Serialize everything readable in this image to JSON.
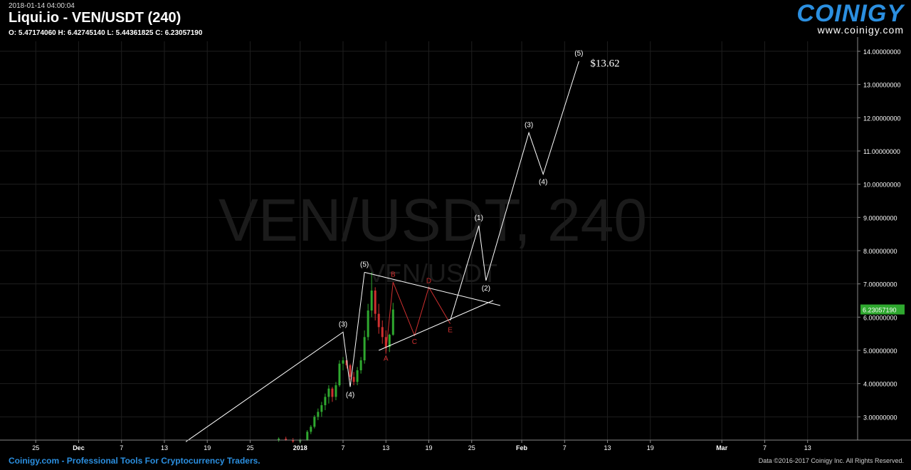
{
  "header": {
    "timestamp": "2018-01-14 04:00:04",
    "title": "Liqui.io - VEN/USDT (240)",
    "ohlc": "O: 5.47174060 H: 6.42745140 L: 5.44361825 C: 6.23057190"
  },
  "logo": {
    "word": "COINIGY",
    "url": "www.coinigy.com"
  },
  "watermark": {
    "large": "VEN/USDT, 240",
    "small": "VEN/USDT"
  },
  "footer": {
    "left": "Coinigy.com - Professional Tools For Cryptocurrency Traders.",
    "right": "Data ©2016-2017 Coinigy Inc. All Rights Reserved."
  },
  "colors": {
    "up": "#2fa82f",
    "down": "#d03030",
    "background": "#000000",
    "accent": "#2b8fe0",
    "price_tag": "#2fa82f",
    "wave_corrective": "#d03030",
    "wave_impulse": "#ffffff"
  },
  "chart_data": {
    "type": "candlestick",
    "x_axis": {
      "domain": [
        "2017-11-20",
        "2018-03-20"
      ],
      "ticks": [
        {
          "date": "2017-11-25",
          "label": "25"
        },
        {
          "date": "2017-12-01",
          "label": "Dec"
        },
        {
          "date": "2017-12-07",
          "label": "7"
        },
        {
          "date": "2017-12-13",
          "label": "13"
        },
        {
          "date": "2017-12-19",
          "label": "19"
        },
        {
          "date": "2017-12-25",
          "label": "25"
        },
        {
          "date": "2018-01-01",
          "label": "2018"
        },
        {
          "date": "2018-01-07",
          "label": "7"
        },
        {
          "date": "2018-01-13",
          "label": "13"
        },
        {
          "date": "2018-01-19",
          "label": "19"
        },
        {
          "date": "2018-01-25",
          "label": "25"
        },
        {
          "date": "2018-02-01",
          "label": "Feb"
        },
        {
          "date": "2018-02-07",
          "label": "7"
        },
        {
          "date": "2018-02-13",
          "label": "13"
        },
        {
          "date": "2018-02-19",
          "label": "19"
        },
        {
          "date": "2018-03-01",
          "label": "Mar"
        },
        {
          "date": "2018-03-07",
          "label": "7"
        },
        {
          "date": "2018-03-13",
          "label": "13"
        }
      ]
    },
    "y_axis": {
      "range": [
        2.3,
        14.3
      ],
      "ticks": [
        3,
        4,
        5,
        6,
        7,
        8,
        9,
        10,
        11,
        12,
        13,
        14
      ],
      "tick_labels": [
        "3.00000000",
        "4.00000000",
        "5.00000000",
        "6.00000000",
        "7.00000000",
        "8.00000000",
        "9.00000000",
        "10.00000000",
        "11.00000000",
        "12.00000000",
        "13.00000000",
        "14.00000000"
      ],
      "side": "right"
    },
    "grid": true,
    "last_price": {
      "value": 6.2305719,
      "label": "6.23057190"
    },
    "candles": [
      {
        "t": "2017-12-29",
        "o": 2.3,
        "h": 2.38,
        "l": 2.25,
        "c": 2.34
      },
      {
        "t": "2017-12-30",
        "o": 2.34,
        "h": 2.4,
        "l": 2.28,
        "c": 2.3
      },
      {
        "t": "2017-12-31",
        "o": 2.3,
        "h": 2.36,
        "l": 2.22,
        "c": 2.26
      },
      {
        "t": "2018-01-01",
        "o": 2.26,
        "h": 2.34,
        "l": 2.2,
        "c": 2.31
      },
      {
        "t": "2018-01-02",
        "o": 2.31,
        "h": 2.6,
        "l": 2.28,
        "c": 2.55
      },
      {
        "t": "2018-01-02 12:00",
        "o": 2.55,
        "h": 2.75,
        "l": 2.48,
        "c": 2.7
      },
      {
        "t": "2018-01-03",
        "o": 2.7,
        "h": 3.05,
        "l": 2.65,
        "c": 3.0
      },
      {
        "t": "2018-01-03 12:00",
        "o": 3.0,
        "h": 3.25,
        "l": 2.9,
        "c": 3.15
      },
      {
        "t": "2018-01-04",
        "o": 3.15,
        "h": 3.45,
        "l": 3.0,
        "c": 3.35
      },
      {
        "t": "2018-01-04 12:00",
        "o": 3.35,
        "h": 3.7,
        "l": 3.2,
        "c": 3.6
      },
      {
        "t": "2018-01-05",
        "o": 3.6,
        "h": 3.95,
        "l": 3.4,
        "c": 3.85
      },
      {
        "t": "2018-01-05 12:00",
        "o": 3.85,
        "h": 3.9,
        "l": 3.45,
        "c": 3.6
      },
      {
        "t": "2018-01-06",
        "o": 3.6,
        "h": 4.05,
        "l": 3.5,
        "c": 3.95
      },
      {
        "t": "2018-01-06 12:00",
        "o": 3.95,
        "h": 4.7,
        "l": 3.9,
        "c": 4.6
      },
      {
        "t": "2018-01-07",
        "o": 4.6,
        "h": 4.8,
        "l": 4.4,
        "c": 4.7
      },
      {
        "t": "2018-01-07 12:00",
        "o": 4.7,
        "h": 4.75,
        "l": 4.45,
        "c": 4.55
      },
      {
        "t": "2018-01-08",
        "o": 4.55,
        "h": 4.6,
        "l": 4.1,
        "c": 4.2
      },
      {
        "t": "2018-01-08 12:00",
        "o": 4.2,
        "h": 4.35,
        "l": 3.95,
        "c": 4.05
      },
      {
        "t": "2018-01-09",
        "o": 4.05,
        "h": 4.5,
        "l": 3.95,
        "c": 4.4
      },
      {
        "t": "2018-01-09 12:00",
        "o": 4.4,
        "h": 4.8,
        "l": 4.3,
        "c": 4.7
      },
      {
        "t": "2018-01-10",
        "o": 4.7,
        "h": 5.6,
        "l": 4.6,
        "c": 5.4
      },
      {
        "t": "2018-01-10 12:00",
        "o": 5.4,
        "h": 6.4,
        "l": 5.3,
        "c": 6.2
      },
      {
        "t": "2018-01-11",
        "o": 6.2,
        "h": 7.35,
        "l": 6.0,
        "c": 6.8
      },
      {
        "t": "2018-01-11 12:00",
        "o": 6.8,
        "h": 6.9,
        "l": 5.9,
        "c": 6.1
      },
      {
        "t": "2018-01-12",
        "o": 6.1,
        "h": 6.4,
        "l": 5.5,
        "c": 5.7
      },
      {
        "t": "2018-01-12 12:00",
        "o": 5.7,
        "h": 5.9,
        "l": 5.2,
        "c": 5.4
      },
      {
        "t": "2018-01-13",
        "o": 5.4,
        "h": 5.6,
        "l": 4.9,
        "c": 5.1
      },
      {
        "t": "2018-01-13 12:00",
        "o": 5.1,
        "h": 5.5,
        "l": 4.95,
        "c": 5.47
      },
      {
        "t": "2018-01-14",
        "o": 5.47,
        "h": 6.43,
        "l": 5.44,
        "c": 6.23
      }
    ],
    "annotations": [
      {
        "label": "(3)",
        "color": "white",
        "x": "2018-01-07",
        "y": 5.55
      },
      {
        "label": "(4)",
        "color": "white",
        "x": "2018-01-08",
        "y": 3.9
      },
      {
        "label": "(5)",
        "color": "white",
        "x": "2018-01-10",
        "y": 7.35
      },
      {
        "label": "A",
        "color": "red",
        "x": "2018-01-13",
        "y": 4.95
      },
      {
        "label": "B",
        "color": "red",
        "x": "2018-01-14",
        "y": 7.05
      },
      {
        "label": "C",
        "color": "red",
        "x": "2018-01-17",
        "y": 5.45
      },
      {
        "label": "D",
        "color": "red",
        "x": "2018-01-19",
        "y": 6.9
      },
      {
        "label": "E",
        "color": "red",
        "x": "2018-01-22",
        "y": 5.8
      },
      {
        "label": "(1)",
        "color": "white",
        "x": "2018-01-26",
        "y": 8.75
      },
      {
        "label": "(2)",
        "color": "white",
        "x": "2018-01-27",
        "y": 7.1
      },
      {
        "label": "(3)",
        "color": "white",
        "x": "2018-02-02",
        "y": 11.55
      },
      {
        "label": "(4)",
        "color": "white",
        "x": "2018-02-04",
        "y": 10.3
      },
      {
        "label": "(5)",
        "color": "white",
        "x": "2018-02-09",
        "y": 13.7
      },
      {
        "label": "$13.62",
        "color": "white",
        "x": "2018-02-10",
        "y": 13.62
      }
    ],
    "wave_lines": [
      {
        "color": "white",
        "points": [
          [
            "2017-12-16",
            2.25
          ],
          [
            "2018-01-07",
            5.55
          ],
          [
            "2018-01-08",
            3.9
          ],
          [
            "2018-01-10",
            7.35
          ]
        ]
      },
      {
        "color": "red",
        "points": [
          [
            "2018-01-13",
            4.95
          ],
          [
            "2018-01-14",
            7.05
          ],
          [
            "2018-01-17",
            5.45
          ],
          [
            "2018-01-19",
            6.9
          ],
          [
            "2018-01-22",
            5.8
          ]
        ]
      },
      {
        "color": "white",
        "points": [
          [
            "2018-01-22",
            5.9
          ],
          [
            "2018-01-26",
            8.75
          ],
          [
            "2018-01-27",
            7.1
          ],
          [
            "2018-02-02",
            11.55
          ],
          [
            "2018-02-04",
            10.3
          ],
          [
            "2018-02-09",
            13.7
          ]
        ]
      }
    ],
    "trend_lines": [
      {
        "color": "white",
        "points": [
          [
            "2018-01-10",
            7.35
          ],
          [
            "2018-01-29",
            6.35
          ]
        ]
      },
      {
        "color": "white",
        "points": [
          [
            "2018-01-12",
            5.0
          ],
          [
            "2018-01-28",
            6.5
          ]
        ]
      }
    ]
  }
}
